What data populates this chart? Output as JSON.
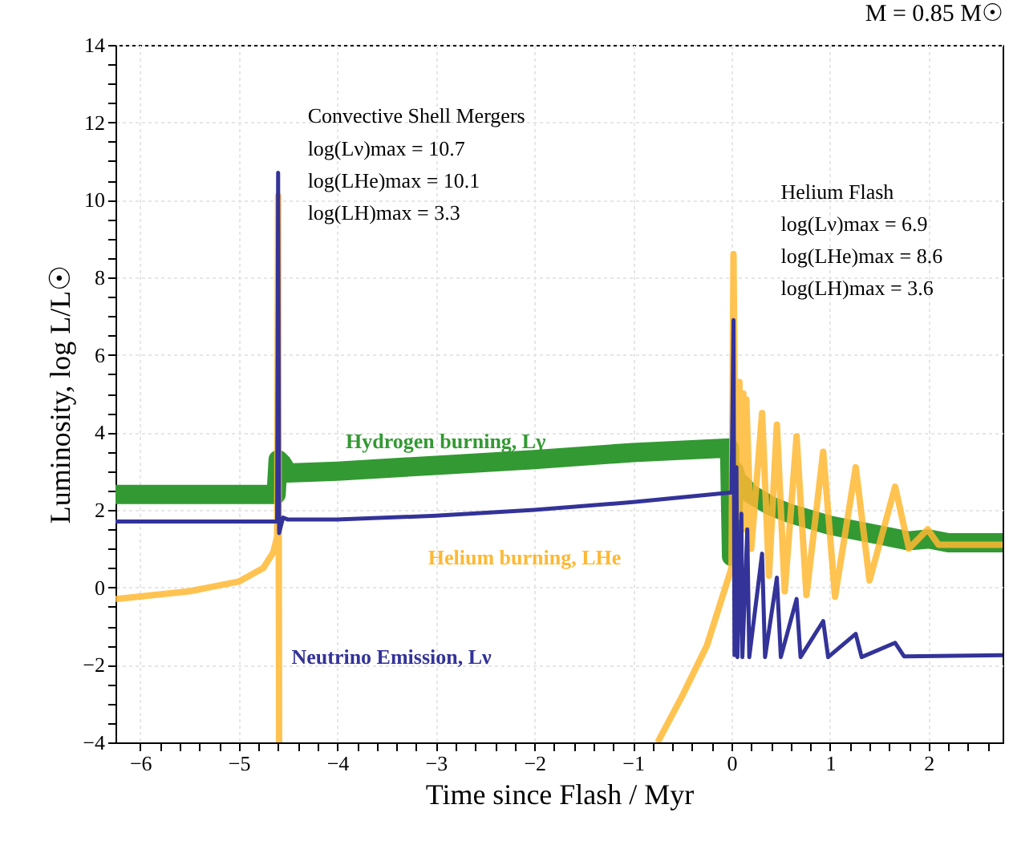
{
  "chart_data": {
    "type": "line",
    "title": "M = 0.85 M☉",
    "xlabel": "Time since Flash / Myr",
    "ylabel": "Luminosity, log L/L☉",
    "xlim": [
      -6.25,
      2.75
    ],
    "ylim": [
      -4,
      14
    ],
    "xticks": [
      -6,
      {
        "value": -5.8,
        "label": null
      },
      {
        "value": -5.6,
        "label": null
      },
      {
        "value": -5.4,
        "label": null
      },
      {
        "value": -5.2,
        "label": null
      },
      -5,
      {
        "value": -4.8,
        "label": null
      },
      {
        "value": -4.6,
        "label": null
      },
      {
        "value": -4.4,
        "label": null
      },
      {
        "value": -4.2,
        "label": null
      },
      -4,
      {
        "value": -3.8,
        "label": null
      },
      {
        "value": -3.6,
        "label": null
      },
      {
        "value": -3.4,
        "label": null
      },
      {
        "value": -3.2,
        "label": null
      },
      -3,
      {
        "value": -2.8,
        "label": null
      },
      {
        "value": -2.6,
        "label": null
      },
      {
        "value": -2.4,
        "label": null
      },
      {
        "value": -2.2,
        "label": null
      },
      -2,
      {
        "value": -1.8,
        "label": null
      },
      {
        "value": -1.6,
        "label": null
      },
      {
        "value": -1.4,
        "label": null
      },
      {
        "value": -1.2,
        "label": null
      },
      -1,
      {
        "value": -0.8,
        "label": null
      },
      {
        "value": -0.6,
        "label": null
      },
      {
        "value": -0.4,
        "label": null
      },
      {
        "value": -0.2,
        "label": null
      },
      0,
      {
        "value": 0.2,
        "label": null
      },
      {
        "value": 0.4,
        "label": null
      },
      {
        "value": 0.6,
        "label": null
      },
      {
        "value": 0.8,
        "label": null
      },
      1,
      {
        "value": 1.2,
        "label": null
      },
      {
        "value": 1.4,
        "label": null
      },
      {
        "value": 1.6,
        "label": null
      },
      {
        "value": 1.8,
        "label": null
      },
      2,
      {
        "value": 2.2,
        "label": null
      },
      {
        "value": 2.4,
        "label": null
      },
      {
        "value": 2.6,
        "label": null
      }
    ],
    "yticks": [
      -4,
      {
        "value": -3.5,
        "label": null
      },
      {
        "value": -3,
        "label": null
      },
      {
        "value": -2.5,
        "label": null
      },
      -2,
      {
        "value": -1.5,
        "label": null
      },
      {
        "value": -1,
        "label": null
      },
      {
        "value": -0.5,
        "label": null
      },
      0,
      {
        "value": 0.5,
        "label": null
      },
      {
        "value": 1,
        "label": null
      },
      {
        "value": 1.5,
        "label": null
      },
      2,
      {
        "value": 2.5,
        "label": null
      },
      {
        "value": 3,
        "label": null
      },
      {
        "value": 3.5,
        "label": null
      },
      4,
      {
        "value": 4.5,
        "label": null
      },
      {
        "value": 5,
        "label": null
      },
      {
        "value": 5.5,
        "label": null
      },
      6,
      {
        "value": 6.5,
        "label": null
      },
      {
        "value": 7,
        "label": null
      },
      {
        "value": 7.5,
        "label": null
      },
      8,
      {
        "value": 8.5,
        "label": null
      },
      {
        "value": 9,
        "label": null
      },
      {
        "value": 9.5,
        "label": null
      },
      10,
      {
        "value": 10.5,
        "label": null
      },
      {
        "value": 11,
        "label": null
      },
      {
        "value": 11.5,
        "label": null
      },
      12,
      {
        "value": 12.5,
        "label": null
      },
      {
        "value": 13,
        "label": null
      },
      {
        "value": 13.5,
        "label": null
      },
      14
    ],
    "grid": true,
    "marker": "none",
    "line_style": "solid",
    "series": [
      {
        "name": "Hydrogen burning, Lγ",
        "color": "#339933",
        "x": [
          -6.25,
          -4.62,
          -4.6,
          -4.56,
          -4.5,
          -4,
          -3,
          -2,
          -1,
          -0.02,
          0,
          0.03,
          0.05,
          0.2,
          0.4,
          0.6,
          0.8,
          1.0,
          1.3,
          1.6,
          1.8,
          2.0,
          2.2,
          2.75
        ],
        "values": [
          2.4,
          2.4,
          3.3,
          3.2,
          2.95,
          3.0,
          3.15,
          3.3,
          3.48,
          3.6,
          0.8,
          3.0,
          2.8,
          2.4,
          2.1,
          1.9,
          1.75,
          1.6,
          1.45,
          1.3,
          1.2,
          1.25,
          1.15,
          1.15
        ]
      },
      {
        "name": "Helium burning, LHe",
        "color": "#ffb833",
        "x": [
          -6.25,
          -5.5,
          -5,
          -4.75,
          -4.65,
          -4.61,
          -4.6,
          -4.59,
          -1.5,
          -0.75,
          -0.5,
          -0.25,
          0,
          0.02,
          0.04,
          0.08,
          0.1,
          0.12,
          0.13,
          0.15,
          0.2,
          0.31,
          0.38,
          0.46,
          0.54,
          0.66,
          0.76,
          0.93,
          1.05,
          1.26,
          1.4,
          1.66,
          1.8,
          1.99,
          2.1,
          2.75
        ],
        "values": [
          -0.3,
          -0.1,
          0.15,
          0.5,
          0.9,
          1.3,
          10.1,
          -4,
          null,
          -4,
          -2.8,
          -1.5,
          0.5,
          8.6,
          2.5,
          5.3,
          1.8,
          5.0,
          1.5,
          4.85,
          1.0,
          4.5,
          0.3,
          4.2,
          -0.1,
          3.9,
          -0.2,
          3.5,
          -0.24,
          3.1,
          0.18,
          2.6,
          1.0,
          1.5,
          1.1,
          1.1
        ]
      },
      {
        "name": "Neutrino Emission, Lν",
        "color": "#333399",
        "x": [
          -6.25,
          -4.61,
          -4.6,
          -4.59,
          -4.55,
          -4.5,
          -4,
          -3,
          -2,
          -1,
          0,
          0.02,
          0.03,
          0.05,
          0.06,
          0.1,
          0.11,
          0.16,
          0.18,
          0.31,
          0.34,
          0.46,
          0.5,
          0.66,
          0.7,
          0.93,
          0.98,
          1.26,
          1.32,
          1.66,
          1.75,
          2.75
        ],
        "values": [
          1.7,
          1.7,
          10.7,
          1.4,
          1.8,
          1.75,
          1.75,
          1.85,
          2.0,
          2.2,
          2.45,
          6.9,
          -1.75,
          3.1,
          -1.8,
          1.9,
          -1.8,
          1.5,
          -1.8,
          0.87,
          -1.8,
          0.25,
          -1.8,
          -0.3,
          -1.8,
          -0.87,
          -1.8,
          -1.2,
          -1.8,
          -1.43,
          -1.78,
          -1.75
        ]
      }
    ],
    "annotations": [
      "Convective Shell Mergers",
      "log(Lν)max  = 10.7",
      "log(LHe)max = 10.1",
      "log(LH)max  = 3.3",
      "Helium Flash",
      "log(Lν)max  = 6.9",
      "log(LHe)max = 8.6",
      "log(LH)max  = 3.6"
    ]
  }
}
